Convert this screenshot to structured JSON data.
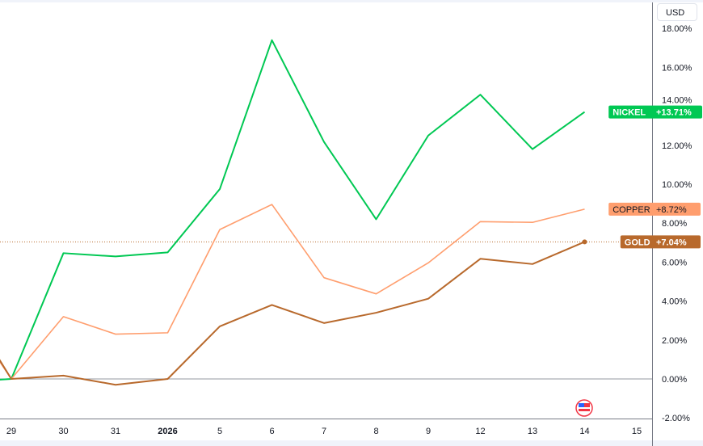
{
  "currency_button": "USD",
  "chart_data": {
    "type": "line",
    "x_labels": [
      "29",
      "30",
      "31",
      "2026",
      "5",
      "6",
      "7",
      "8",
      "9",
      "12",
      "13",
      "14",
      "15"
    ],
    "ylim": [
      -2.6,
      19.5
    ],
    "yticks": [
      -2,
      0,
      2,
      4,
      6,
      8,
      10,
      12,
      14,
      16,
      18
    ],
    "ytick_labels": [
      "-2.00%",
      "0.00%",
      "2.00%",
      "4.00%",
      "6.00%",
      "8.00%",
      "10.00%",
      "12.00%",
      "14.00%",
      "16.00%",
      "18.00%"
    ],
    "series": [
      {
        "name": "NICKEL",
        "label": "+13.71%",
        "color": "#00c853",
        "lead_value": -0.05,
        "values": [
          0,
          6.46,
          6.29,
          6.5,
          9.75,
          17.4,
          12.17,
          8.2,
          12.5,
          14.6,
          11.8,
          13.71
        ]
      },
      {
        "name": "COPPER",
        "label": "+8.72%",
        "color": "#ff9e6e",
        "lead_value": 1.2,
        "values": [
          0,
          3.2,
          2.3,
          2.37,
          7.67,
          8.96,
          5.2,
          4.37,
          5.96,
          8.08,
          8.04,
          8.72
        ]
      },
      {
        "name": "GOLD",
        "label": "+7.04%",
        "color": "#b8692c",
        "lead_value": 1.3,
        "values": [
          0,
          0.17,
          -0.3,
          0,
          2.7,
          3.8,
          2.87,
          3.4,
          4.12,
          6.17,
          5.9,
          7.04
        ]
      }
    ]
  }
}
